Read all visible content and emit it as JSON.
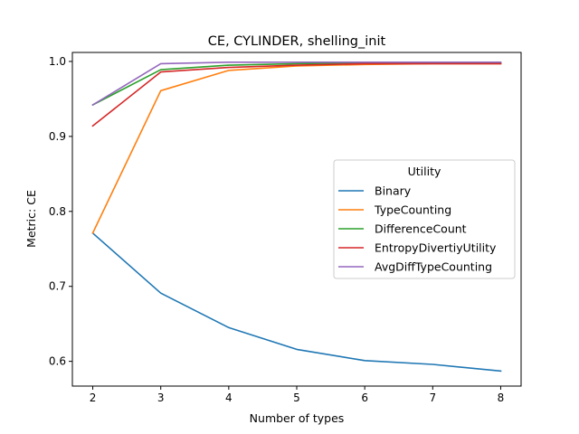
{
  "chart_data": {
    "type": "line",
    "title": "CE, CYLINDER, shelling_init",
    "xlabel": "Number of types",
    "ylabel": "Metric: CE",
    "x": [
      2,
      3,
      4,
      5,
      6,
      7,
      8
    ],
    "x_ticks": [
      "2",
      "3",
      "4",
      "5",
      "6",
      "7",
      "8"
    ],
    "y_ticks": [
      "0.6",
      "0.7",
      "0.8",
      "0.9",
      "1.0"
    ],
    "xlim": [
      1.7,
      8.3
    ],
    "ylim": [
      0.567,
      1.012
    ],
    "grid": false,
    "legend": {
      "title": "Utility",
      "placement": "center-right"
    },
    "series": [
      {
        "name": "Binary",
        "color": "#1f77b4",
        "values": [
          0.771,
          0.691,
          0.645,
          0.616,
          0.601,
          0.596,
          0.587
        ]
      },
      {
        "name": "TypeCounting",
        "color": "#ff7f0e",
        "values": [
          0.771,
          0.961,
          0.988,
          0.994,
          0.996,
          0.997,
          0.997
        ]
      },
      {
        "name": "DifferenceCount",
        "color": "#2ca02c",
        "values": [
          0.942,
          0.989,
          0.995,
          0.997,
          0.998,
          0.998,
          0.998
        ]
      },
      {
        "name": "EntropyDivertiyUtility",
        "color": "#d62728",
        "values": [
          0.914,
          0.986,
          0.992,
          0.995,
          0.997,
          0.997,
          0.997
        ]
      },
      {
        "name": "AvgDiffTypeCounting",
        "color": "#9467bd",
        "values": [
          0.942,
          0.997,
          0.999,
          0.999,
          0.999,
          0.999,
          0.999
        ]
      }
    ]
  }
}
